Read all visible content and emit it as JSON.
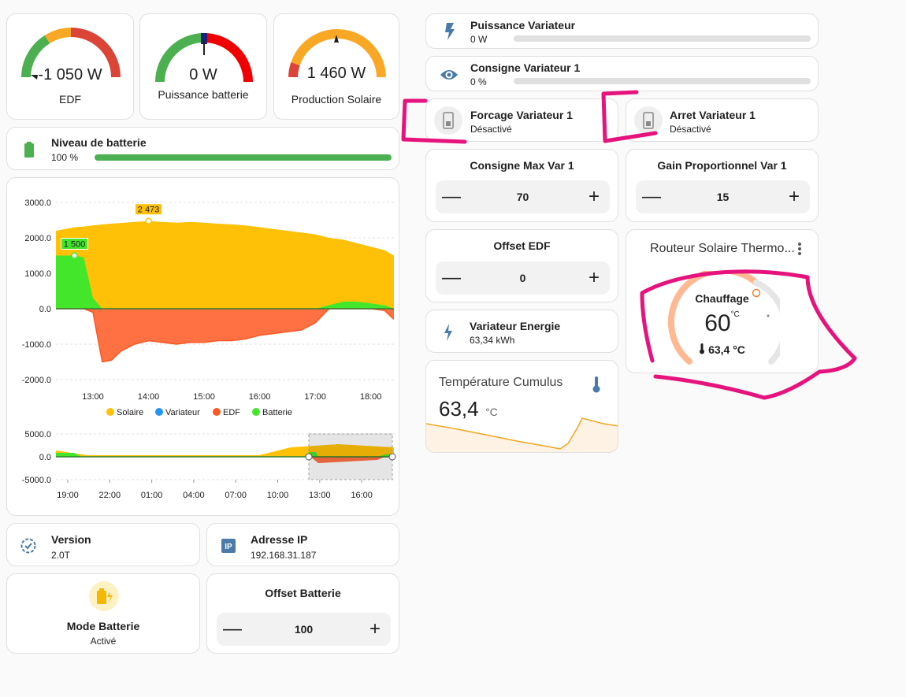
{
  "gauges": [
    {
      "value": "-1 050 W",
      "label": "EDF"
    },
    {
      "value": "0 W",
      "label": "Puissance batterie"
    },
    {
      "value": "1 460 W",
      "label": "Production Solaire"
    }
  ],
  "battery_level": {
    "title": "Niveau de batterie",
    "value": "100 %",
    "percent": 100,
    "color": "#4caf50"
  },
  "chart_data": [
    {
      "type": "area",
      "series": [
        {
          "name": "Solaire",
          "color": "#ffc107"
        },
        {
          "name": "Variateur",
          "color": "#2196f3"
        },
        {
          "name": "EDF",
          "color": "#ff5722"
        },
        {
          "name": "Batterie",
          "color": "#44e62c"
        }
      ],
      "y_ticks": [
        "3000.0",
        "2000.0",
        "1000.0",
        "0.0",
        "-1000.0",
        "-2000.0"
      ],
      "x_ticks": [
        "13:00",
        "14:00",
        "15:00",
        "16:00",
        "17:00",
        "18:00"
      ],
      "ylim": [
        -2000,
        3000
      ],
      "annotations": [
        "2 473",
        "1 500"
      ],
      "x": [
        "12:20",
        "12:30",
        "12:40",
        "12:50",
        "13:00",
        "13:10",
        "13:20",
        "13:30",
        "13:45",
        "14:00",
        "14:15",
        "14:30",
        "14:45",
        "15:00",
        "15:15",
        "15:30",
        "15:45",
        "16:00",
        "16:15",
        "16:30",
        "16:45",
        "17:00",
        "17:15",
        "17:30",
        "17:45",
        "18:00",
        "18:15",
        "18:25"
      ],
      "solaire": [
        2200,
        2250,
        2300,
        2320,
        2350,
        2380,
        2400,
        2420,
        2450,
        2473,
        2450,
        2430,
        2450,
        2430,
        2400,
        2380,
        2350,
        2300,
        2250,
        2200,
        2150,
        2100,
        2000,
        1950,
        1850,
        1750,
        1650,
        1500
      ],
      "batterie": [
        1500,
        1500,
        1500,
        1450,
        300,
        0,
        0,
        0,
        0,
        0,
        0,
        0,
        0,
        0,
        0,
        0,
        0,
        0,
        0,
        0,
        0,
        0,
        100,
        200,
        200,
        150,
        100,
        0
      ],
      "edf": [
        0,
        0,
        0,
        0,
        -100,
        -1500,
        -1450,
        -1200,
        -1000,
        -900,
        -950,
        -1000,
        -950,
        -950,
        -900,
        -900,
        -850,
        -750,
        -700,
        -650,
        -600,
        -400,
        0,
        0,
        0,
        0,
        -50,
        -300
      ],
      "variateur": [
        0,
        0,
        0,
        0,
        0,
        0,
        0,
        0,
        0,
        0,
        0,
        0,
        0,
        0,
        0,
        0,
        0,
        0,
        0,
        0,
        0,
        0,
        0,
        0,
        0,
        0,
        0,
        0
      ]
    },
    {
      "type": "area",
      "y_ticks": [
        "5000.0",
        "0.0",
        "-5000.0"
      ],
      "x_ticks": [
        "19:00",
        "22:00",
        "01:00",
        "04:00",
        "07:00",
        "10:00",
        "13:00",
        "16:00"
      ],
      "ylim": [
        -5000,
        5000
      ]
    }
  ],
  "version": {
    "title": "Version",
    "value": "2.0T"
  },
  "ip": {
    "title": "Adresse IP",
    "value": "192.168.31.187"
  },
  "mode_batterie": {
    "title": "Mode Batterie",
    "value": "Activé"
  },
  "offset_batterie": {
    "title": "Offset Batterie",
    "value": "100"
  },
  "puissance_variateur": {
    "title": "Puissance Variateur",
    "value": "0 W",
    "percent": 0
  },
  "consigne_variateur": {
    "title": "Consigne Variateur 1",
    "value": "0 %",
    "percent": 0
  },
  "forcage": {
    "title": "Forcage Variateur 1",
    "value": "Désactivé"
  },
  "arret": {
    "title": "Arret Variateur 1",
    "value": "Désactivé"
  },
  "consigne_max": {
    "title": "Consigne Max Var 1",
    "value": "70"
  },
  "gain_prop": {
    "title": "Gain Proportionnel Var 1",
    "value": "15"
  },
  "offset_edf": {
    "title": "Offset EDF",
    "value": "0"
  },
  "variateur_energie": {
    "title": "Variateur Energie",
    "value": "63,34 kWh"
  },
  "temperature": {
    "title": "Température Cumulus",
    "value": "63,4",
    "unit": "°C"
  },
  "thermostat": {
    "title": "Routeur Solaire Thermo...",
    "mode": "Chauffage",
    "target": "60",
    "unit": "°C",
    "current": "63,4 °C"
  },
  "stepper_symbols": {
    "minus": "—",
    "plus": "+"
  },
  "colors": {
    "accent": "#4a7aa8",
    "annotation": "#e6137c"
  }
}
